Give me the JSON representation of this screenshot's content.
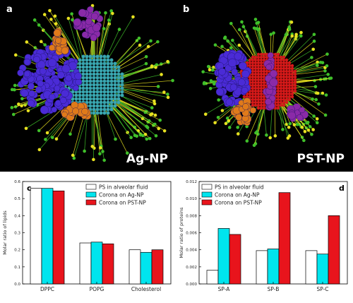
{
  "panels": {
    "a": {
      "letter": "a",
      "label": "Ag-NP"
    },
    "b": {
      "letter": "b",
      "label": "PST-NP"
    }
  },
  "colors": {
    "ps_fluid": "#ffffff",
    "corona_ag": "#00e5ee",
    "corona_pst": "#e8141c",
    "background": "#000000",
    "protein_blue": "#4a2bd6",
    "protein_orange": "#e07a1a",
    "protein_purple": "#8a2aa8",
    "lipid_green": "#3fbf2a",
    "lipid_yellow": "#e6e020",
    "ag_core": "#3aa6b0",
    "pst_core": "#d81a1a"
  },
  "chart_data": [
    {
      "type": "bar",
      "panel": "c",
      "ylabel": "Molar ratio of lipids",
      "categories": [
        "DPPC",
        "POPG",
        "Cholesterol"
      ],
      "ylim": [
        0,
        0.6
      ],
      "yticks": [
        0.0,
        0.1,
        0.2,
        0.3,
        0.4,
        0.5,
        0.6
      ],
      "yticklabels": [
        "0.0",
        "0.1",
        "0.2",
        "0.3",
        "0.4",
        "0.5",
        "0.6"
      ],
      "legend_position": "top-right",
      "series": [
        {
          "name": "PS in alveolar fluid",
          "color": "#ffffff",
          "values": [
            0.56,
            0.24,
            0.2
          ]
        },
        {
          "name": "Corona on Ag-NP",
          "color": "#00e5ee",
          "values": [
            0.56,
            0.245,
            0.185
          ]
        },
        {
          "name": "Corona on PST-NP",
          "color": "#e8141c",
          "values": [
            0.545,
            0.235,
            0.2
          ]
        }
      ]
    },
    {
      "type": "bar",
      "panel": "d",
      "ylabel": "Molar ratio of proteins",
      "categories": [
        "SP-A",
        "SP-B",
        "SP-C"
      ],
      "ylim": [
        0,
        0.012
      ],
      "yticks": [
        0.0,
        0.002,
        0.004,
        0.006,
        0.008,
        0.01,
        0.012
      ],
      "yticklabels": [
        "0.000",
        "0.002",
        "0.004",
        "0.006",
        "0.008",
        "0.010",
        "0.012"
      ],
      "legend_position": "top-left",
      "series": [
        {
          "name": "PS in alveolar fluid",
          "color": "#ffffff",
          "values": [
            0.0016,
            0.0039,
            0.0039
          ]
        },
        {
          "name": "Corona on Ag-NP",
          "color": "#00e5ee",
          "values": [
            0.0065,
            0.0041,
            0.0035
          ]
        },
        {
          "name": "Corona on PST-NP",
          "color": "#e8141c",
          "values": [
            0.0058,
            0.0107,
            0.008
          ]
        }
      ]
    }
  ]
}
